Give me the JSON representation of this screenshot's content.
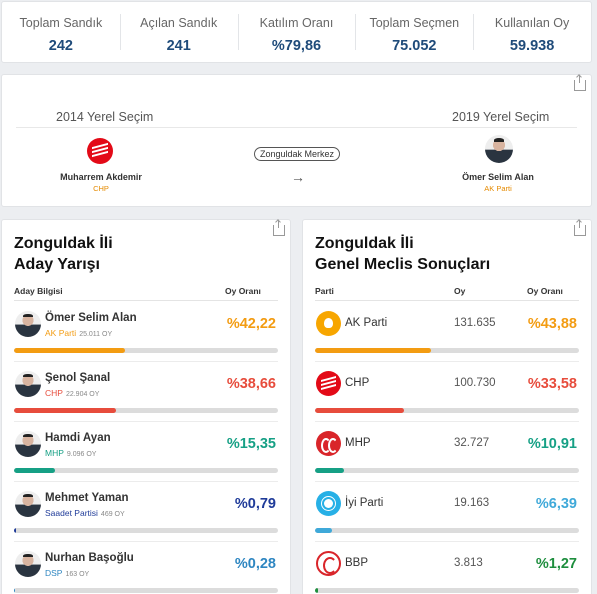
{
  "summary": [
    {
      "label": "Toplam Sandık",
      "value": "242"
    },
    {
      "label": "Açılan Sandık",
      "value": "241"
    },
    {
      "label": "Katılım Oranı",
      "value": "%79,86"
    },
    {
      "label": "Toplam Seçmen",
      "value": "75.052"
    },
    {
      "label": "Kullanılan Oy",
      "value": "59.938"
    }
  ],
  "comparison": {
    "left_year": "2014 Yerel Seçim",
    "right_year": "2019 Yerel Seçim",
    "location": "Zonguldak Merkez",
    "left_winner": {
      "name": "Muharrem Akdemir",
      "party": "CHP"
    },
    "right_winner": {
      "name": "Ömer Selim Alan",
      "party": "AK Parti"
    },
    "arrow_icon": "arrow-right-icon"
  },
  "candidates_panel": {
    "title_line1": "Zonguldak İli",
    "title_line2": "Aday Yarışı",
    "col_candidate": "Aday Bilgisi",
    "col_rate": "Oy Oranı",
    "rows": [
      {
        "name": "Ömer Selim Alan",
        "party": "AK Parti",
        "votes": "25.011 OY",
        "pct": "%42,22",
        "rate": 42.22,
        "color": "#f39c12",
        "avatar_bg": "#f3f3f3"
      },
      {
        "name": "Şenol Şanal",
        "party": "CHP",
        "votes": "22.904 OY",
        "pct": "%38,66",
        "rate": 38.66,
        "color": "#e74c3c",
        "avatar_bg": "#dfe3e8"
      },
      {
        "name": "Hamdi Ayan",
        "party": "MHP",
        "votes": "9.096 OY",
        "pct": "%15,35",
        "rate": 15.35,
        "color": "#16a085",
        "avatar_bg": "#d5d5d5"
      },
      {
        "name": "Mehmet Yaman",
        "party": "Saadet Partisi",
        "votes": "469 OY",
        "pct": "%0,79",
        "rate": 0.79,
        "color": "#1f3b99",
        "avatar_bg": "#cfcfcf"
      },
      {
        "name": "Nurhan Başoğlu",
        "party": "DSP",
        "votes": "163 OY",
        "pct": "%0,28",
        "rate": 0.28,
        "color": "#2e86c1",
        "avatar_bg": "#2e86c1"
      }
    ]
  },
  "council_panel": {
    "title_line1": "Zonguldak İli",
    "title_line2": "Genel Meclis Sonuçları",
    "col_party": "Parti",
    "col_votes": "Oy",
    "col_rate": "Oy Oranı",
    "rows": [
      {
        "party": "AK Parti",
        "votes": "131.635",
        "pct": "%43,88",
        "rate": 43.88,
        "color": "#f39c12",
        "logo": "akp"
      },
      {
        "party": "CHP",
        "votes": "100.730",
        "pct": "%33,58",
        "rate": 33.58,
        "color": "#e74c3c",
        "logo": "chp"
      },
      {
        "party": "MHP",
        "votes": "32.727",
        "pct": "%10,91",
        "rate": 10.91,
        "color": "#16a085",
        "logo": "mhp"
      },
      {
        "party": "İyi Parti",
        "votes": "19.163",
        "pct": "%6,39",
        "rate": 6.39,
        "color": "#3fa9d9",
        "logo": "iyi"
      },
      {
        "party": "BBP",
        "votes": "3.813",
        "pct": "%1,27",
        "rate": 1.27,
        "color": "#1e8e3e",
        "logo": "bbp"
      }
    ]
  }
}
